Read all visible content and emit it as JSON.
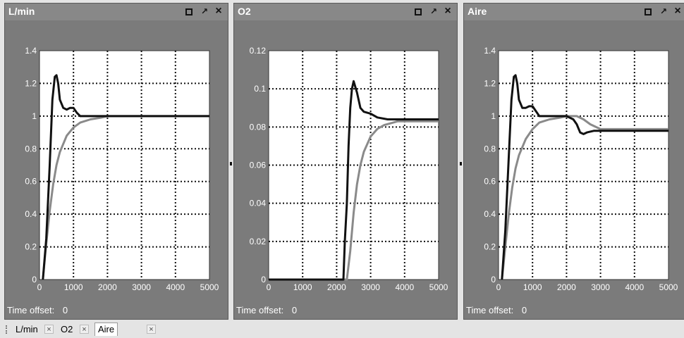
{
  "windows": [
    {
      "title": "L/min",
      "time_offset_label": "Time offset:",
      "time_offset_value": "0"
    },
    {
      "title": "O2",
      "time_offset_label": "Time offset:",
      "time_offset_value": "0"
    },
    {
      "title": "Aire",
      "time_offset_label": "Time offset:",
      "time_offset_value": "0"
    }
  ],
  "window_buttons": {
    "maximize_icon": "maximize-icon",
    "undock_icon": "pin-arrow-icon",
    "close_glyph": "×",
    "undock_glyph": "↗"
  },
  "tabs": [
    {
      "label": "L/min",
      "close": "×",
      "active": false
    },
    {
      "label": "O2",
      "close": "×",
      "active": false
    },
    {
      "label": "Aire",
      "close": "×",
      "active": true
    }
  ],
  "colors": {
    "window_bg": "#7b7b7b",
    "plot_bg": "#ffffff",
    "series_black": "#111111",
    "series_gray": "#8a8a8a"
  },
  "chart_data": [
    {
      "type": "line",
      "title": "L/min",
      "xlim": [
        0,
        5000
      ],
      "ylim": [
        0,
        1.4
      ],
      "xticks": [
        "0",
        "1000",
        "2000",
        "3000",
        "4000",
        "5000"
      ],
      "yticks": [
        "0",
        "0.2",
        "0.4",
        "0.6",
        "0.8",
        "1",
        "1.2",
        "1.4"
      ],
      "grid": true,
      "series": [
        {
          "color": "#111111",
          "x": [
            100,
            200,
            300,
            380,
            450,
            500,
            550,
            600,
            700,
            800,
            900,
            1000,
            1100,
            1200,
            1500,
            2000,
            5000
          ],
          "y": [
            0,
            0.25,
            0.7,
            1.1,
            1.24,
            1.25,
            1.2,
            1.1,
            1.05,
            1.04,
            1.05,
            1.05,
            1.02,
            1.0,
            1.0,
            1.0,
            1.0
          ]
        },
        {
          "color": "#8a8a8a",
          "x": [
            100,
            200,
            300,
            400,
            500,
            600,
            800,
            1000,
            1200,
            1500,
            1800,
            2000,
            5000
          ],
          "y": [
            0,
            0.22,
            0.42,
            0.58,
            0.7,
            0.78,
            0.88,
            0.93,
            0.96,
            0.98,
            0.99,
            1.0,
            1.0
          ]
        }
      ]
    },
    {
      "type": "line",
      "title": "O2",
      "xlim": [
        0,
        5000
      ],
      "ylim": [
        0,
        0.12
      ],
      "xticks": [
        "0",
        "1000",
        "2000",
        "3000",
        "4000",
        "5000"
      ],
      "yticks": [
        "0",
        "0.02",
        "0.04",
        "0.06",
        "0.08",
        "0.1",
        "0.12"
      ],
      "grid": true,
      "series": [
        {
          "color": "#111111",
          "x": [
            0,
            2200,
            2240,
            2300,
            2350,
            2400,
            2450,
            2500,
            2600,
            2700,
            2800,
            3000,
            3200,
            3500,
            4000,
            5000
          ],
          "y": [
            0,
            0,
            0.02,
            0.04,
            0.07,
            0.09,
            0.1,
            0.104,
            0.098,
            0.09,
            0.088,
            0.087,
            0.085,
            0.084,
            0.084,
            0.084
          ]
        },
        {
          "color": "#8a8a8a",
          "x": [
            0,
            2300,
            2400,
            2500,
            2600,
            2700,
            2800,
            3000,
            3200,
            3400,
            3600,
            3800,
            4000,
            5000
          ],
          "y": [
            0,
            0,
            0.015,
            0.035,
            0.05,
            0.06,
            0.067,
            0.075,
            0.079,
            0.081,
            0.082,
            0.083,
            0.083,
            0.083
          ]
        }
      ]
    },
    {
      "type": "line",
      "title": "Aire",
      "xlim": [
        0,
        5000
      ],
      "ylim": [
        0,
        1.4
      ],
      "xticks": [
        "0",
        "1000",
        "2000",
        "3000",
        "4000",
        "5000"
      ],
      "yticks": [
        "0",
        "0.2",
        "0.4",
        "0.6",
        "0.8",
        "1",
        "1.2",
        "1.4"
      ],
      "grid": true,
      "series": [
        {
          "color": "#111111",
          "x": [
            100,
            200,
            300,
            380,
            450,
            500,
            550,
            600,
            700,
            800,
            900,
            1000,
            1100,
            1200,
            1500,
            2000,
            2200,
            2300,
            2400,
            2500,
            2600,
            2800,
            3000,
            5000
          ],
          "y": [
            0,
            0.3,
            0.75,
            1.1,
            1.24,
            1.25,
            1.2,
            1.1,
            1.05,
            1.05,
            1.06,
            1.06,
            1.03,
            1.0,
            1.0,
            1.0,
            0.98,
            0.95,
            0.9,
            0.89,
            0.9,
            0.91,
            0.91,
            0.91
          ]
        },
        {
          "color": "#8a8a8a",
          "x": [
            100,
            200,
            300,
            400,
            500,
            600,
            800,
            1000,
            1200,
            1500,
            1800,
            2000,
            2300,
            2500,
            2700,
            3000,
            5000
          ],
          "y": [
            0,
            0.2,
            0.4,
            0.56,
            0.68,
            0.76,
            0.86,
            0.92,
            0.96,
            0.98,
            0.99,
            1.0,
            1.0,
            0.98,
            0.95,
            0.92,
            0.92
          ]
        }
      ]
    }
  ]
}
